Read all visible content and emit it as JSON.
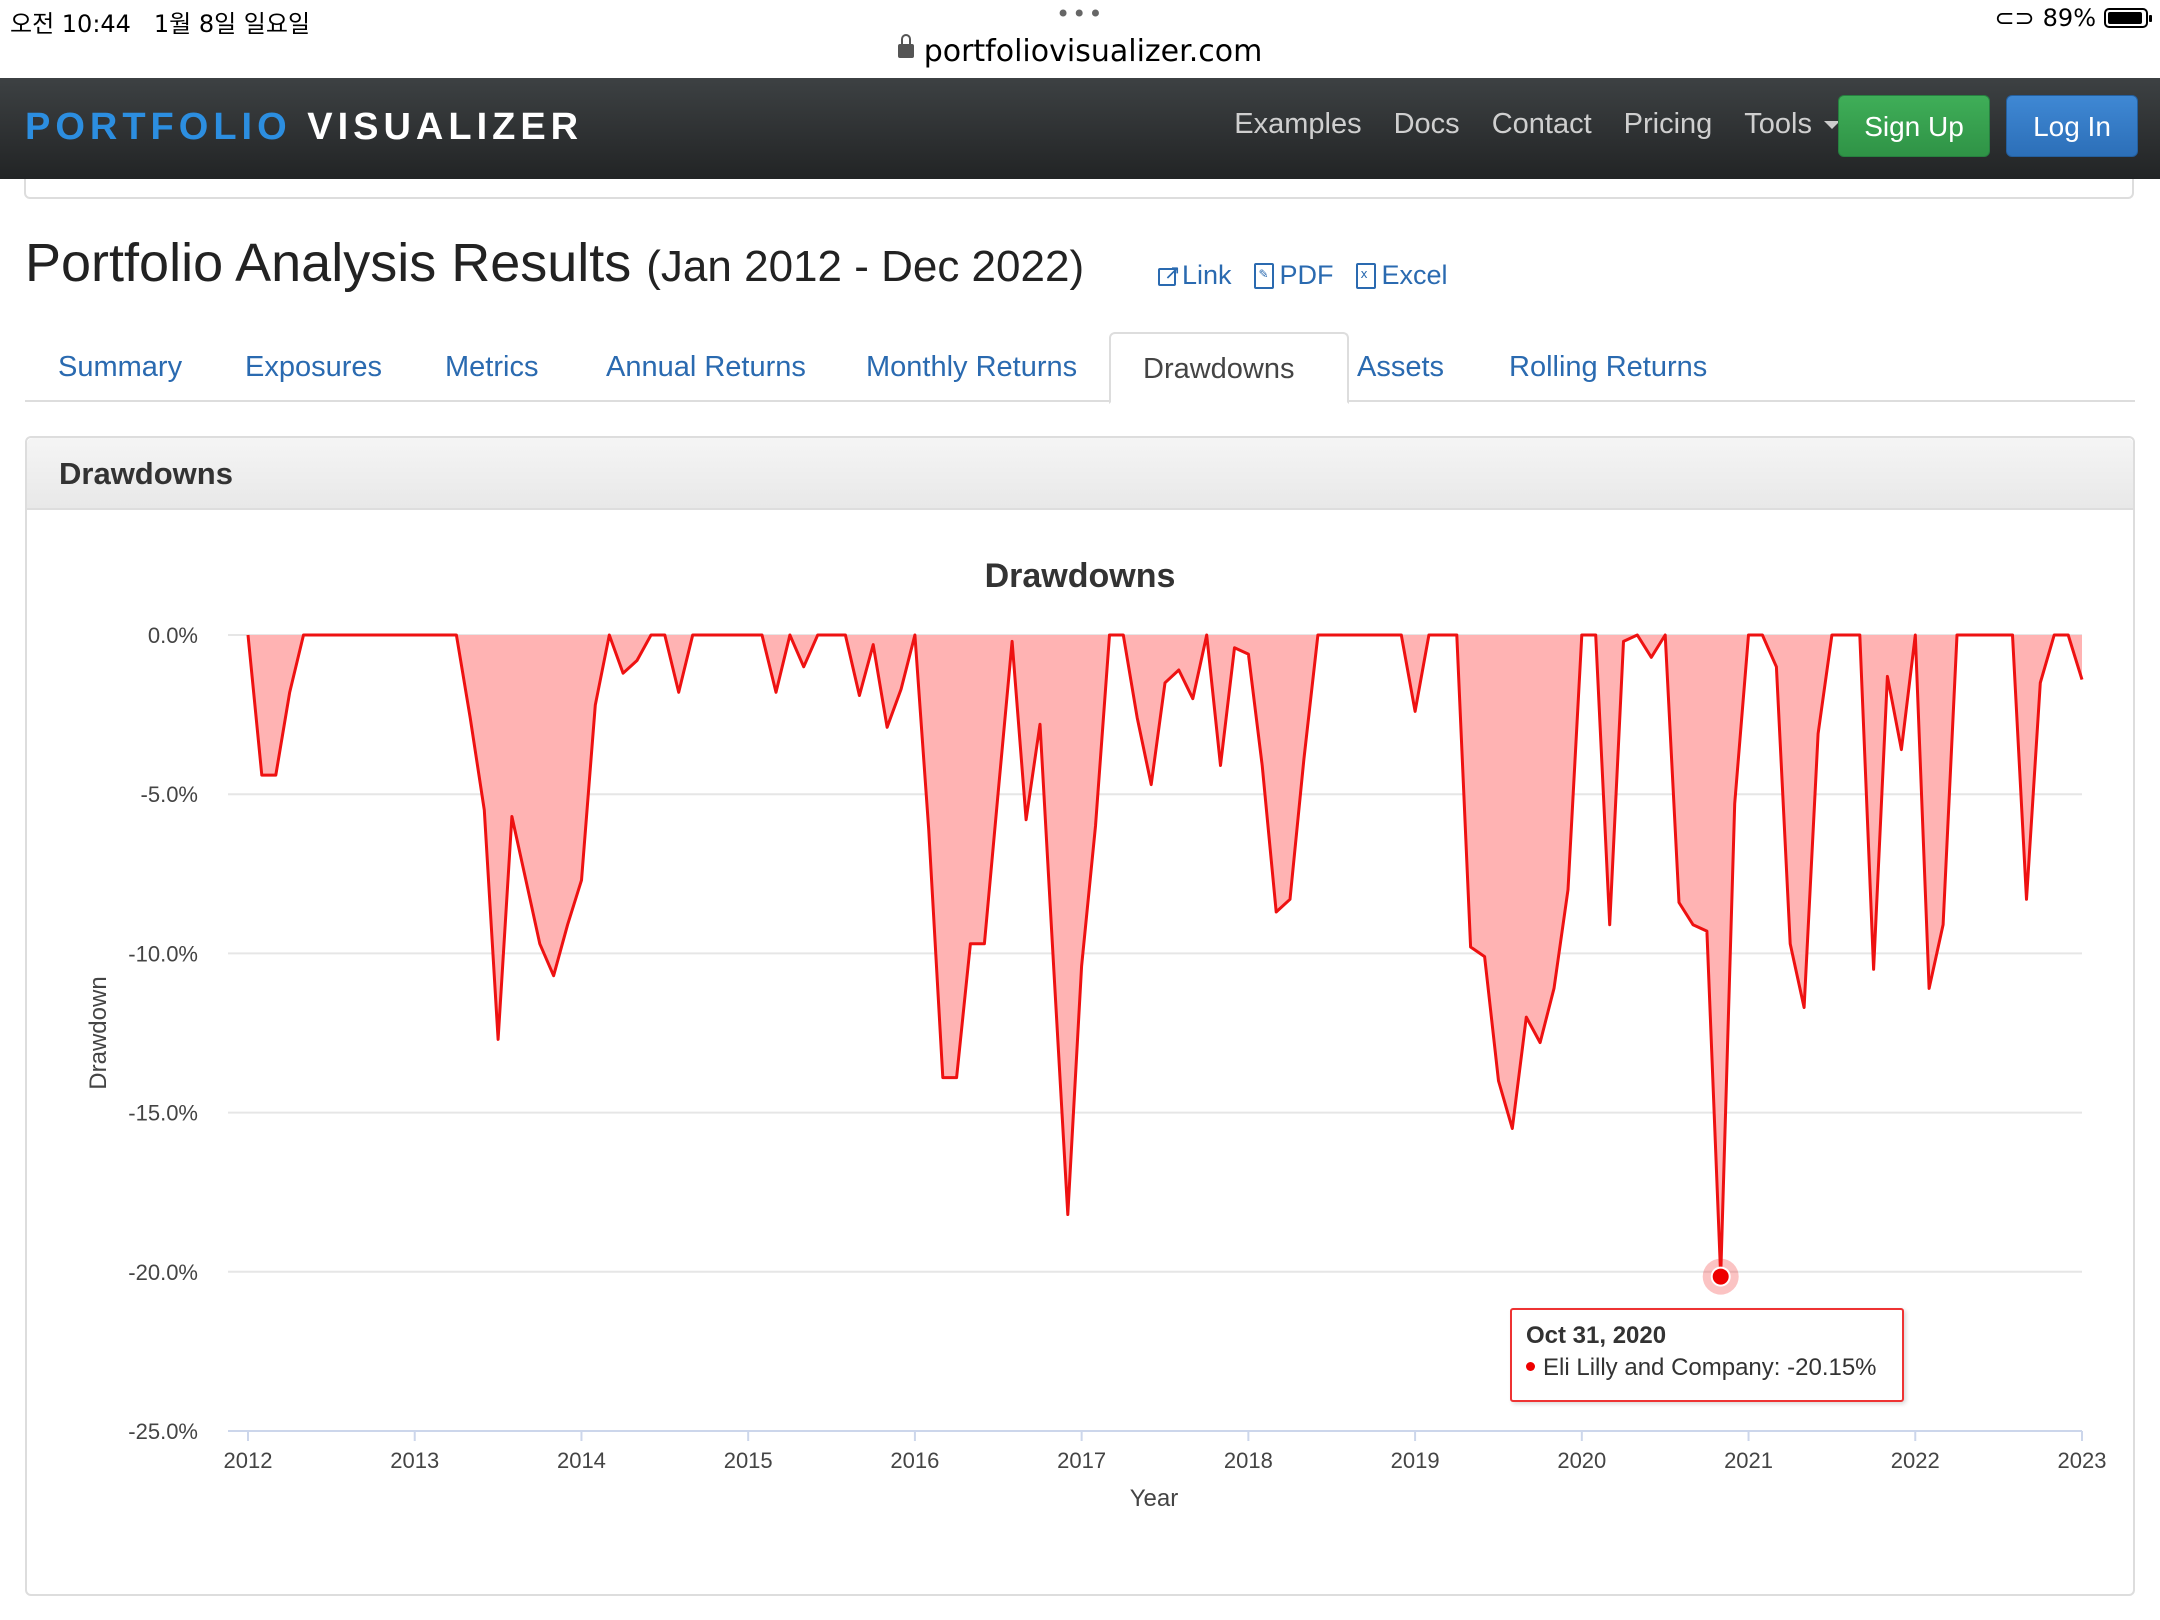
{
  "status_bar": {
    "time": "오전 10:44",
    "date": "1월 8일 일요일",
    "dots": "•••",
    "battery": "89%"
  },
  "url": "portfoliovisualizer.com",
  "brand": {
    "part1": "PORTFOLIO",
    "part2": "VISUALIZER"
  },
  "nav": {
    "examples": "Examples",
    "docs": "Docs",
    "contact": "Contact",
    "pricing": "Pricing",
    "tools": "Tools",
    "sign_up": "Sign Up",
    "log_in": "Log In"
  },
  "page": {
    "title": "Portfolio Analysis Results",
    "range": "(Jan 2012 - Dec 2022)",
    "link": "Link",
    "pdf": "PDF",
    "excel": "Excel"
  },
  "tabs": [
    "Summary",
    "Exposures",
    "Metrics",
    "Annual Returns",
    "Monthly Returns",
    "Drawdowns",
    "Assets",
    "Rolling Returns"
  ],
  "active_tab": "Drawdowns",
  "panel_title": "Drawdowns",
  "colors": {
    "line": "#ee1111",
    "fill": "#ffb3b3",
    "link": "#2a6ab0",
    "signup": "#34a04d",
    "login": "#3079c6"
  },
  "tooltip": {
    "date": "Oct 31, 2020",
    "series": "Eli Lilly and Company:",
    "value": "-20.15%"
  },
  "chart_data": {
    "type": "area",
    "title": "Drawdowns",
    "xlabel": "Year",
    "ylabel": "Drawdown",
    "ylim": [
      -25,
      0
    ],
    "xlim": [
      2012,
      2023
    ],
    "y_ticks": [
      "0.0%",
      "-5.0%",
      "-10.0%",
      "-15.0%",
      "-20.0%",
      "-25.0%"
    ],
    "x_ticks": [
      "2012",
      "2013",
      "2014",
      "2015",
      "2016",
      "2017",
      "2018",
      "2019",
      "2020",
      "2021",
      "2022",
      "2023"
    ],
    "grid": true,
    "series": [
      {
        "name": "Eli Lilly and Company",
        "points": [
          [
            2012.0,
            0
          ],
          [
            2012.083,
            -4.4
          ],
          [
            2012.167,
            -4.4
          ],
          [
            2012.25,
            -1.8
          ],
          [
            2012.333,
            0
          ],
          [
            2012.417,
            0
          ],
          [
            2012.5,
            0
          ],
          [
            2012.583,
            0
          ],
          [
            2012.667,
            0
          ],
          [
            2012.75,
            0
          ],
          [
            2012.833,
            0
          ],
          [
            2012.917,
            0
          ],
          [
            2013.0,
            0
          ],
          [
            2013.083,
            0
          ],
          [
            2013.167,
            0
          ],
          [
            2013.25,
            0
          ],
          [
            2013.333,
            -2.6
          ],
          [
            2013.417,
            -5.5
          ],
          [
            2013.5,
            -12.7
          ],
          [
            2013.583,
            -5.7
          ],
          [
            2013.667,
            -7.7
          ],
          [
            2013.75,
            -9.7
          ],
          [
            2013.833,
            -10.7
          ],
          [
            2013.917,
            -9.1
          ],
          [
            2014.0,
            -7.7
          ],
          [
            2014.083,
            -2.2
          ],
          [
            2014.167,
            0
          ],
          [
            2014.25,
            -1.2
          ],
          [
            2014.333,
            -0.8
          ],
          [
            2014.417,
            0
          ],
          [
            2014.5,
            0
          ],
          [
            2014.583,
            -1.8
          ],
          [
            2014.667,
            0
          ],
          [
            2014.75,
            0
          ],
          [
            2014.833,
            0
          ],
          [
            2014.917,
            0
          ],
          [
            2015.0,
            0
          ],
          [
            2015.083,
            0
          ],
          [
            2015.167,
            -1.8
          ],
          [
            2015.25,
            0
          ],
          [
            2015.333,
            -1.0
          ],
          [
            2015.417,
            0
          ],
          [
            2015.5,
            0
          ],
          [
            2015.583,
            0
          ],
          [
            2015.667,
            -1.9
          ],
          [
            2015.75,
            -0.3
          ],
          [
            2015.833,
            -2.9
          ],
          [
            2015.917,
            -1.7
          ],
          [
            2016.0,
            0
          ],
          [
            2016.083,
            -6.1
          ],
          [
            2016.167,
            -13.9
          ],
          [
            2016.25,
            -13.9
          ],
          [
            2016.333,
            -9.7
          ],
          [
            2016.417,
            -9.7
          ],
          [
            2016.5,
            -4.9
          ],
          [
            2016.583,
            -0.2
          ],
          [
            2016.667,
            -5.8
          ],
          [
            2016.75,
            -2.8
          ],
          [
            2016.833,
            -10.5
          ],
          [
            2016.917,
            -18.2
          ],
          [
            2017.0,
            -10.4
          ],
          [
            2017.083,
            -6.0
          ],
          [
            2017.167,
            0
          ],
          [
            2017.25,
            0
          ],
          [
            2017.333,
            -2.6
          ],
          [
            2017.417,
            -4.7
          ],
          [
            2017.5,
            -1.5
          ],
          [
            2017.583,
            -1.1
          ],
          [
            2017.667,
            -2.0
          ],
          [
            2017.75,
            0
          ],
          [
            2017.833,
            -4.1
          ],
          [
            2017.917,
            -0.4
          ],
          [
            2018.0,
            -0.6
          ],
          [
            2018.083,
            -4.1
          ],
          [
            2018.167,
            -8.7
          ],
          [
            2018.25,
            -8.3
          ],
          [
            2018.333,
            -3.9
          ],
          [
            2018.417,
            0
          ],
          [
            2018.5,
            0
          ],
          [
            2018.583,
            0
          ],
          [
            2018.667,
            0
          ],
          [
            2018.75,
            0
          ],
          [
            2018.833,
            0
          ],
          [
            2018.917,
            0
          ],
          [
            2019.0,
            -2.4
          ],
          [
            2019.083,
            0
          ],
          [
            2019.167,
            0
          ],
          [
            2019.25,
            0
          ],
          [
            2019.333,
            -9.8
          ],
          [
            2019.417,
            -10.1
          ],
          [
            2019.5,
            -14.0
          ],
          [
            2019.583,
            -15.5
          ],
          [
            2019.667,
            -12.0
          ],
          [
            2019.75,
            -12.8
          ],
          [
            2019.833,
            -11.1
          ],
          [
            2019.917,
            -8.0
          ],
          [
            2020.0,
            0
          ],
          [
            2020.083,
            0
          ],
          [
            2020.167,
            -9.1
          ],
          [
            2020.25,
            -0.2
          ],
          [
            2020.333,
            0
          ],
          [
            2020.417,
            -0.7
          ],
          [
            2020.5,
            0
          ],
          [
            2020.583,
            -8.4
          ],
          [
            2020.667,
            -9.1
          ],
          [
            2020.75,
            -9.3
          ],
          [
            2020.833,
            -20.15
          ],
          [
            2020.917,
            -5.3
          ],
          [
            2021.0,
            0
          ],
          [
            2021.083,
            0
          ],
          [
            2021.167,
            -1.0
          ],
          [
            2021.25,
            -9.7
          ],
          [
            2021.333,
            -11.7
          ],
          [
            2021.417,
            -3.1
          ],
          [
            2021.5,
            0
          ],
          [
            2021.583,
            0
          ],
          [
            2021.667,
            0
          ],
          [
            2021.75,
            -10.5
          ],
          [
            2021.833,
            -1.3
          ],
          [
            2021.917,
            -3.6
          ],
          [
            2022.0,
            0
          ],
          [
            2022.083,
            -11.1
          ],
          [
            2022.167,
            -9.1
          ],
          [
            2022.25,
            0
          ],
          [
            2022.333,
            0
          ],
          [
            2022.417,
            0
          ],
          [
            2022.5,
            0
          ],
          [
            2022.583,
            0
          ],
          [
            2022.667,
            -8.3
          ],
          [
            2022.75,
            -1.5
          ],
          [
            2022.833,
            0
          ],
          [
            2022.917,
            0
          ],
          [
            2023.0,
            -1.4
          ]
        ]
      }
    ],
    "highlight": {
      "x": 2020.833,
      "y": -20.15
    }
  }
}
